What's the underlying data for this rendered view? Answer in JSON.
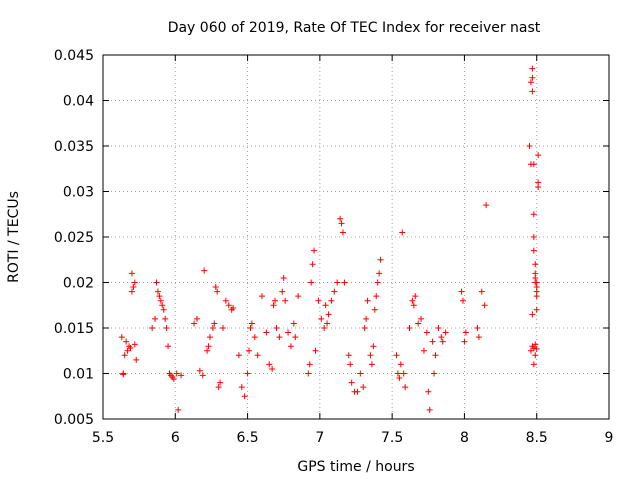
{
  "chart_data": {
    "type": "scatter",
    "title": "Day 060 of 2019, Rate Of TEC Index for receiver nast",
    "xlabel": "GPS time / hours",
    "ylabel": "ROTI / TECUs",
    "xlim": [
      5.5,
      9
    ],
    "ylim": [
      0.005,
      0.045
    ],
    "xticks": [
      "5.5",
      "6",
      "6.5",
      "7",
      "7.5",
      "8",
      "8.5",
      "9"
    ],
    "yticks": [
      "0.005",
      "0.01",
      "0.015",
      "0.02",
      "0.025",
      "0.03",
      "0.035",
      "0.04",
      "0.045"
    ],
    "grid": true,
    "marker": "+",
    "color": "#ff0000",
    "series": [
      {
        "name": "ROTI",
        "x": [
          5.63,
          5.64,
          5.65,
          5.66,
          5.67,
          5.68,
          5.69,
          5.7,
          5.7,
          5.71,
          5.72,
          5.73,
          5.64,
          5.72,
          5.84,
          5.86,
          5.87,
          5.88,
          5.89,
          5.9,
          5.91,
          5.92,
          5.93,
          5.94,
          5.95,
          5.96,
          5.97,
          5.98,
          5.99,
          6.01,
          6.02,
          6.04,
          6.13,
          6.15,
          6.17,
          6.19,
          6.2,
          6.22,
          6.23,
          6.24,
          6.26,
          6.27,
          6.28,
          6.29,
          6.3,
          6.31,
          6.33,
          6.35,
          6.37,
          6.39,
          6.4,
          6.44,
          6.46,
          6.48,
          6.5,
          6.51,
          6.52,
          6.53,
          6.55,
          6.57,
          6.6,
          6.63,
          6.65,
          6.67,
          6.68,
          6.69,
          6.7,
          6.72,
          6.74,
          6.75,
          6.76,
          6.78,
          6.8,
          6.82,
          6.83,
          6.85,
          6.92,
          6.93,
          6.94,
          6.95,
          6.96,
          6.97,
          6.99,
          7.01,
          7.03,
          7.04,
          7.05,
          7.06,
          7.08,
          7.1,
          7.12,
          7.14,
          7.15,
          7.16,
          7.17,
          7.2,
          7.21,
          7.22,
          7.24,
          7.26,
          7.28,
          7.3,
          7.31,
          7.32,
          7.33,
          7.35,
          7.36,
          7.37,
          7.38,
          7.39,
          7.4,
          7.41,
          7.42,
          7.53,
          7.54,
          7.55,
          7.56,
          7.57,
          7.58,
          7.59,
          7.62,
          7.64,
          7.65,
          7.66,
          7.68,
          7.7,
          7.72,
          7.74,
          7.75,
          7.76,
          7.78,
          7.79,
          7.8,
          7.82,
          7.84,
          7.85,
          7.87,
          7.98,
          7.99,
          8.0,
          8.01,
          8.09,
          8.1,
          8.12,
          8.14,
          8.15,
          8.45,
          8.46,
          8.46,
          8.47,
          8.47,
          8.47,
          8.48,
          8.48,
          8.48,
          8.48,
          8.49,
          8.49,
          8.49,
          8.49,
          8.5,
          8.5,
          8.5,
          8.5,
          8.5,
          8.51,
          8.51,
          8.51,
          8.46,
          8.47,
          8.48,
          8.49,
          8.5,
          8.47,
          8.48,
          8.49
        ],
        "y": [
          0.014,
          0.01,
          0.012,
          0.0135,
          0.0125,
          0.013,
          0.0128,
          0.021,
          0.019,
          0.0195,
          0.02,
          0.0115,
          0.0099,
          0.0132,
          0.015,
          0.016,
          0.02,
          0.019,
          0.0185,
          0.018,
          0.0175,
          0.017,
          0.016,
          0.015,
          0.013,
          0.01,
          0.0098,
          0.0096,
          0.0094,
          0.01,
          0.006,
          0.0098,
          0.0155,
          0.016,
          0.0103,
          0.0098,
          0.0213,
          0.0125,
          0.013,
          0.014,
          0.015,
          0.0155,
          0.0195,
          0.019,
          0.0085,
          0.009,
          0.015,
          0.018,
          0.0175,
          0.017,
          0.0172,
          0.012,
          0.0085,
          0.0075,
          0.01,
          0.0125,
          0.015,
          0.0155,
          0.014,
          0.012,
          0.0185,
          0.0145,
          0.011,
          0.0105,
          0.0175,
          0.018,
          0.015,
          0.014,
          0.019,
          0.0205,
          0.018,
          0.0145,
          0.013,
          0.0155,
          0.014,
          0.0185,
          0.01,
          0.011,
          0.02,
          0.022,
          0.0235,
          0.0125,
          0.018,
          0.016,
          0.015,
          0.0175,
          0.0155,
          0.0165,
          0.018,
          0.019,
          0.02,
          0.027,
          0.0265,
          0.0255,
          0.02,
          0.012,
          0.011,
          0.009,
          0.008,
          0.008,
          0.01,
          0.0085,
          0.015,
          0.016,
          0.018,
          0.012,
          0.011,
          0.013,
          0.017,
          0.0185,
          0.02,
          0.021,
          0.0225,
          0.012,
          0.01,
          0.0095,
          0.011,
          0.0255,
          0.01,
          0.0085,
          0.015,
          0.018,
          0.0175,
          0.0185,
          0.0155,
          0.016,
          0.0125,
          0.0145,
          0.008,
          0.006,
          0.0135,
          0.01,
          0.012,
          0.015,
          0.014,
          0.0135,
          0.0145,
          0.019,
          0.018,
          0.0135,
          0.0145,
          0.015,
          0.014,
          0.019,
          0.0175,
          0.0285,
          0.035,
          0.033,
          0.042,
          0.0435,
          0.0425,
          0.041,
          0.033,
          0.0275,
          0.025,
          0.0235,
          0.022,
          0.021,
          0.0205,
          0.02,
          0.02,
          0.0195,
          0.019,
          0.0185,
          0.017,
          0.034,
          0.031,
          0.0305,
          0.0125,
          0.013,
          0.0128,
          0.0132,
          0.0127,
          0.0165,
          0.011,
          0.012
        ]
      }
    ]
  }
}
